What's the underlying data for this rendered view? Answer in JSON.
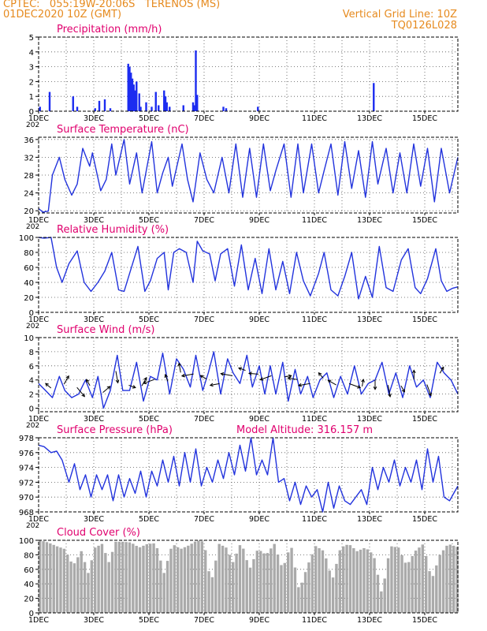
{
  "header": {
    "line1": "CPTEC:   055:19W-20:06S   TERENOS (MS)",
    "line2": "01DEC2020 10Z (GMT)",
    "right1": "Vertical Grid Line: 10Z",
    "right2": "TQ0126L028"
  },
  "colors": {
    "header": "#e68a1e",
    "title": "#e0006e",
    "line": "#2233dd",
    "bar": "#1c2cf0",
    "cloud": "#aaaaaa",
    "arrow": "#000000"
  },
  "x_axis": {
    "range_days": [
      1,
      16.2
    ],
    "ticks": [
      1,
      3,
      5,
      7,
      9,
      11,
      13,
      15
    ],
    "labels": [
      "1DEC",
      "3DEC",
      "5DEC",
      "7DEC",
      "9DEC",
      "11DEC",
      "13DEC",
      "15DEC"
    ],
    "year_fragment": "202"
  },
  "chart_data": [
    {
      "id": "precip",
      "type": "bar",
      "title": "Precipitation (mm/h)",
      "ylim": [
        0,
        5
      ],
      "yticks": [
        0,
        1,
        2,
        3,
        4,
        5
      ],
      "x": [
        1.05,
        1.4,
        2.25,
        2.4,
        3.05,
        3.2,
        3.4,
        3.6,
        4.25,
        4.3,
        4.35,
        4.4,
        4.45,
        4.5,
        4.55,
        4.65,
        4.7,
        4.9,
        5.1,
        5.25,
        5.35,
        5.55,
        5.6,
        5.65,
        5.75,
        6.25,
        6.6,
        6.65,
        6.7,
        6.75,
        7.7,
        7.8,
        8.95,
        13.15
      ],
      "values": [
        0.3,
        1.3,
        1.0,
        0.3,
        0.2,
        0.7,
        0.8,
        0.2,
        3.2,
        3.0,
        2.6,
        2.2,
        1.8,
        1.4,
        2.0,
        1.2,
        0.3,
        0.6,
        0.3,
        1.3,
        0.4,
        1.4,
        1.0,
        0.6,
        0.3,
        0.4,
        0.6,
        0.4,
        4.1,
        1.1,
        0.3,
        0.2,
        0.3,
        1.9
      ]
    },
    {
      "id": "temp",
      "type": "line",
      "title": "Surface Temperature (nC)",
      "ylim": [
        19.5,
        36.5
      ],
      "yticks": [
        20,
        24,
        28,
        32,
        36
      ],
      "x": [
        1.0,
        1.15,
        1.35,
        1.5,
        1.75,
        1.95,
        2.2,
        2.4,
        2.6,
        2.85,
        2.95,
        3.25,
        3.45,
        3.65,
        3.8,
        4.1,
        4.3,
        4.55,
        4.75,
        5.1,
        5.3,
        5.5,
        5.7,
        5.85,
        6.2,
        6.4,
        6.6,
        6.85,
        7.1,
        7.35,
        7.65,
        7.9,
        8.15,
        8.4,
        8.65,
        8.9,
        9.15,
        9.4,
        9.6,
        9.9,
        10.15,
        10.4,
        10.6,
        10.9,
        11.15,
        11.35,
        11.6,
        11.85,
        12.1,
        12.35,
        12.6,
        12.85,
        13.1,
        13.3,
        13.6,
        13.85,
        14.1,
        14.35,
        14.6,
        14.85,
        15.1,
        15.35,
        15.6,
        15.9,
        16.2
      ],
      "values": [
        20.5,
        19.7,
        19.9,
        28,
        32,
        27,
        23.5,
        26,
        34,
        30,
        33,
        24.5,
        27,
        35,
        28,
        36,
        26,
        33,
        24,
        35.5,
        24,
        28.5,
        32,
        25.5,
        35,
        27,
        22,
        33,
        27,
        24,
        32,
        24,
        35,
        23,
        34,
        23,
        35,
        24.5,
        29,
        35,
        23,
        35,
        24,
        35,
        24,
        29,
        35,
        23.5,
        35.5,
        25,
        33.5,
        23,
        35.5,
        26,
        34,
        24,
        33,
        24,
        35,
        25.5,
        34,
        22,
        34,
        24,
        32
      ]
    },
    {
      "id": "rh",
      "type": "line",
      "title": "Relative Humidity (%)",
      "ylim": [
        0,
        100
      ],
      "yticks": [
        0,
        20,
        40,
        60,
        80,
        100
      ],
      "x": [
        1.0,
        1.2,
        1.45,
        1.65,
        1.85,
        2.1,
        2.4,
        2.65,
        2.9,
        3.15,
        3.4,
        3.65,
        3.9,
        4.1,
        4.3,
        4.6,
        4.85,
        5.05,
        5.3,
        5.55,
        5.7,
        5.9,
        6.1,
        6.35,
        6.6,
        6.75,
        6.95,
        7.2,
        7.4,
        7.6,
        7.85,
        8.1,
        8.35,
        8.6,
        8.85,
        9.1,
        9.35,
        9.6,
        9.85,
        10.1,
        10.35,
        10.6,
        10.85,
        11.15,
        11.35,
        11.6,
        11.85,
        12.1,
        12.35,
        12.6,
        12.85,
        13.1,
        13.35,
        13.6,
        13.85,
        14.15,
        14.4,
        14.65,
        14.85,
        15.1,
        15.4,
        15.6,
        15.8,
        16.0,
        16.2
      ],
      "values": [
        100,
        99,
        100,
        60,
        40,
        65,
        82,
        40,
        28,
        40,
        55,
        80,
        30,
        28,
        52,
        88,
        28,
        42,
        72,
        80,
        30,
        80,
        85,
        80,
        40,
        95,
        82,
        78,
        42,
        78,
        85,
        35,
        90,
        30,
        72,
        25,
        85,
        30,
        68,
        25,
        80,
        42,
        22,
        52,
        80,
        30,
        22,
        48,
        80,
        18,
        48,
        20,
        88,
        33,
        28,
        70,
        85,
        33,
        25,
        45,
        85,
        42,
        28,
        32,
        34
      ]
    },
    {
      "id": "wind",
      "type": "line",
      "title": "Surface Wind (m/s)",
      "ylim": [
        -0.5,
        10
      ],
      "yticks": [
        0,
        2,
        4,
        6,
        8,
        10
      ],
      "x": [
        1.0,
        1.25,
        1.5,
        1.75,
        1.95,
        2.2,
        2.45,
        2.7,
        2.95,
        3.15,
        3.35,
        3.6,
        3.85,
        4.05,
        4.3,
        4.55,
        4.8,
        5.05,
        5.3,
        5.5,
        5.75,
        6.0,
        6.25,
        6.5,
        6.7,
        6.95,
        7.15,
        7.35,
        7.6,
        7.85,
        8.05,
        8.3,
        8.55,
        8.75,
        9.0,
        9.2,
        9.4,
        9.6,
        9.85,
        10.05,
        10.3,
        10.5,
        10.75,
        10.95,
        11.2,
        11.45,
        11.7,
        11.95,
        12.2,
        12.45,
        12.7,
        12.95,
        13.2,
        13.45,
        13.7,
        13.95,
        14.2,
        14.45,
        14.7,
        14.95,
        15.2,
        15.45,
        15.7,
        15.95,
        16.2
      ],
      "values": [
        3.5,
        2.5,
        1.5,
        4.5,
        2.5,
        1.5,
        2,
        4,
        1.5,
        4.5,
        0,
        2.5,
        7.5,
        2.5,
        2.5,
        6.5,
        1,
        4.5,
        4,
        7.8,
        2,
        7,
        5.5,
        3,
        7.5,
        2.5,
        5,
        8,
        2,
        7,
        5,
        3.5,
        7.5,
        3,
        6,
        2,
        6,
        2,
        6.5,
        1,
        5.5,
        2,
        4.5,
        1.5,
        4,
        5,
        1.5,
        4.5,
        2,
        6,
        2,
        3.5,
        4,
        6.5,
        2,
        5,
        1.5,
        6,
        3,
        4,
        1.5,
        6.5,
        5,
        4,
        2
      ]
    },
    {
      "id": "pressure",
      "type": "line",
      "title": "Surface Pressure (hPa)",
      "ylim": [
        968,
        978
      ],
      "yticks": [
        968,
        970,
        972,
        974,
        976,
        978
      ],
      "extra_label": "Model Altitude: 316.157 m",
      "x": [
        1.0,
        1.2,
        1.45,
        1.65,
        1.85,
        2.1,
        2.3,
        2.5,
        2.7,
        2.9,
        3.1,
        3.3,
        3.5,
        3.7,
        3.9,
        4.1,
        4.3,
        4.5,
        4.7,
        4.9,
        5.1,
        5.3,
        5.5,
        5.7,
        5.9,
        6.1,
        6.3,
        6.5,
        6.7,
        6.9,
        7.1,
        7.3,
        7.5,
        7.7,
        7.9,
        8.1,
        8.3,
        8.5,
        8.7,
        8.9,
        9.1,
        9.3,
        9.5,
        9.7,
        9.9,
        10.1,
        10.3,
        10.5,
        10.7,
        10.9,
        11.1,
        11.3,
        11.5,
        11.7,
        11.9,
        12.1,
        12.3,
        12.5,
        12.7,
        12.9,
        13.1,
        13.3,
        13.5,
        13.7,
        13.9,
        14.1,
        14.3,
        14.5,
        14.7,
        14.9,
        15.1,
        15.3,
        15.5,
        15.7,
        15.9,
        16.2
      ],
      "values": [
        977,
        976.8,
        976,
        976.2,
        975,
        972,
        974.5,
        971,
        973,
        970,
        973,
        971,
        973,
        969.5,
        973,
        970,
        972.5,
        970.5,
        973.5,
        970,
        973.5,
        971.5,
        975,
        972,
        975.5,
        971.5,
        976,
        972,
        976.5,
        971.5,
        974,
        972,
        975,
        972.5,
        976,
        973,
        977,
        973.5,
        978,
        973,
        975,
        973,
        978,
        972,
        972.5,
        969.5,
        972,
        969,
        971.5,
        970,
        971,
        968,
        972,
        968.5,
        971.5,
        969.5,
        969,
        970,
        971,
        969,
        974,
        971,
        974,
        972,
        975,
        971.5,
        974,
        972,
        975,
        971,
        976.5,
        972,
        975.5,
        970,
        969.5,
        971.5
      ]
    },
    {
      "id": "cloud",
      "type": "area",
      "title": "Cloud Cover (%)",
      "ylim": [
        0,
        100
      ],
      "yticks": [
        0,
        20,
        40,
        60,
        80,
        100
      ],
      "x": [
        1.0,
        1.3,
        1.6,
        1.9,
        2.2,
        2.5,
        2.75,
        3.0,
        3.25,
        3.5,
        3.75,
        4.0,
        4.3,
        4.6,
        4.9,
        5.2,
        5.5,
        5.8,
        6.1,
        6.4,
        6.7,
        6.95,
        7.2,
        7.5,
        7.75,
        8.0,
        8.3,
        8.6,
        8.9,
        9.2,
        9.5,
        9.8,
        10.1,
        10.4,
        10.7,
        11.0,
        11.3,
        11.6,
        11.9,
        12.2,
        12.5,
        12.8,
        13.1,
        13.4,
        13.7,
        14.0,
        14.3,
        14.6,
        14.9,
        15.2,
        15.5,
        15.8,
        16.2
      ],
      "values": [
        100,
        97,
        92,
        88,
        65,
        85,
        55,
        90,
        95,
        70,
        98,
        98,
        97,
        90,
        95,
        96,
        55,
        95,
        88,
        93,
        100,
        98,
        40,
        95,
        90,
        70,
        98,
        60,
        88,
        80,
        95,
        60,
        95,
        30,
        65,
        92,
        85,
        45,
        90,
        95,
        85,
        90,
        80,
        25,
        92,
        90,
        65,
        85,
        95,
        45,
        80,
        95,
        90
      ]
    }
  ]
}
